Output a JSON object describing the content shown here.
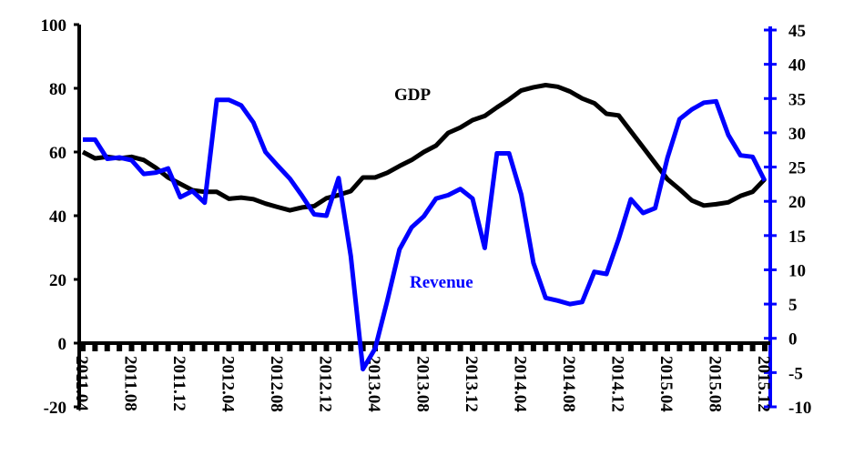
{
  "chart_data": {
    "type": "line",
    "title": "",
    "x": [
      "2011.04",
      "2011.05",
      "2011.06",
      "2011.07",
      "2011.08",
      "2011.09",
      "2011.10",
      "2011.11",
      "2011.12",
      "2012.01",
      "2012.02",
      "2012.03",
      "2012.04",
      "2012.05",
      "2012.06",
      "2012.07",
      "2012.08",
      "2012.09",
      "2012.10",
      "2012.11",
      "2012.12",
      "2013.01",
      "2013.02",
      "2013.03",
      "2013.04",
      "2013.05",
      "2013.06",
      "2013.07",
      "2013.08",
      "2013.09",
      "2013.10",
      "2013.11",
      "2013.12",
      "2014.01",
      "2014.02",
      "2014.03",
      "2014.04",
      "2014.05",
      "2014.06",
      "2014.07",
      "2014.08",
      "2014.09",
      "2014.10",
      "2014.11",
      "2014.12",
      "2015.01",
      "2015.02",
      "2015.03",
      "2015.04",
      "2015.05",
      "2015.06",
      "2015.07",
      "2015.08",
      "2015.09",
      "2015.10",
      "2015.11",
      "2015.12"
    ],
    "x_tick_labels": [
      "2011.04",
      "2011.08",
      "2011.12",
      "2012.04",
      "2012.08",
      "2012.12",
      "2013.04",
      "2013.08",
      "2013.12",
      "2014.04",
      "2014.08",
      "2014.12",
      "2015.04",
      "2015.08",
      "2015.12"
    ],
    "left_axis": {
      "ylim": [
        -20,
        100
      ],
      "ticks": [
        "-20",
        "0",
        "20",
        "40",
        "60",
        "80",
        "100"
      ],
      "color": "#000000"
    },
    "right_axis": {
      "ylim": [
        -10,
        45
      ],
      "ticks": [
        "-10",
        "-5",
        "0",
        "5",
        "10",
        "15",
        "20",
        "25",
        "30",
        "35",
        "40",
        "45"
      ],
      "color": "#0000ff"
    },
    "series": [
      {
        "name": "GDP",
        "axis": "left",
        "color": "#000000",
        "values": [
          60,
          58,
          58.5,
          58,
          58.5,
          57.5,
          55,
          52,
          50,
          48,
          47.5,
          47.5,
          45.3,
          45.7,
          45.2,
          43.8,
          42.7,
          41.7,
          42.6,
          43,
          45.5,
          46.5,
          47.7,
          52,
          52,
          53.5,
          55.6,
          57.5,
          60,
          62,
          66,
          67.7,
          70,
          71.3,
          74,
          76.5,
          79.3,
          80.3,
          81,
          80.5,
          79,
          76.8,
          75.3,
          72,
          71.5,
          66.5,
          61.5,
          56.5,
          51.5,
          48.3,
          44.8,
          43.2,
          43.6,
          44.2,
          46.2,
          47.5,
          51.5
        ]
      },
      {
        "name": "Revenue",
        "axis": "right",
        "color": "#0000ff",
        "values": [
          29,
          29,
          26.2,
          26.4,
          26,
          24,
          24.2,
          24.8,
          20.6,
          21.5,
          19.8,
          34.8,
          34.8,
          34,
          31.5,
          27.2,
          25.2,
          23.3,
          20.8,
          18.1,
          17.9,
          23.4,
          12,
          -4.5,
          -1.5,
          5.5,
          13,
          16.2,
          17.8,
          20.4,
          20.9,
          21.8,
          20.4,
          13.2,
          27,
          27,
          21,
          11,
          5.9,
          5.5,
          5,
          5.3,
          9.7,
          9.4,
          14.5,
          20.3,
          18.3,
          19,
          26.3,
          32,
          33.4,
          34.4,
          34.6,
          29.7,
          26.7,
          26.5,
          23
        ]
      }
    ],
    "annotations": [
      "GDP",
      "Revenue"
    ],
    "grid": false,
    "legend": "none (inline labels)"
  }
}
